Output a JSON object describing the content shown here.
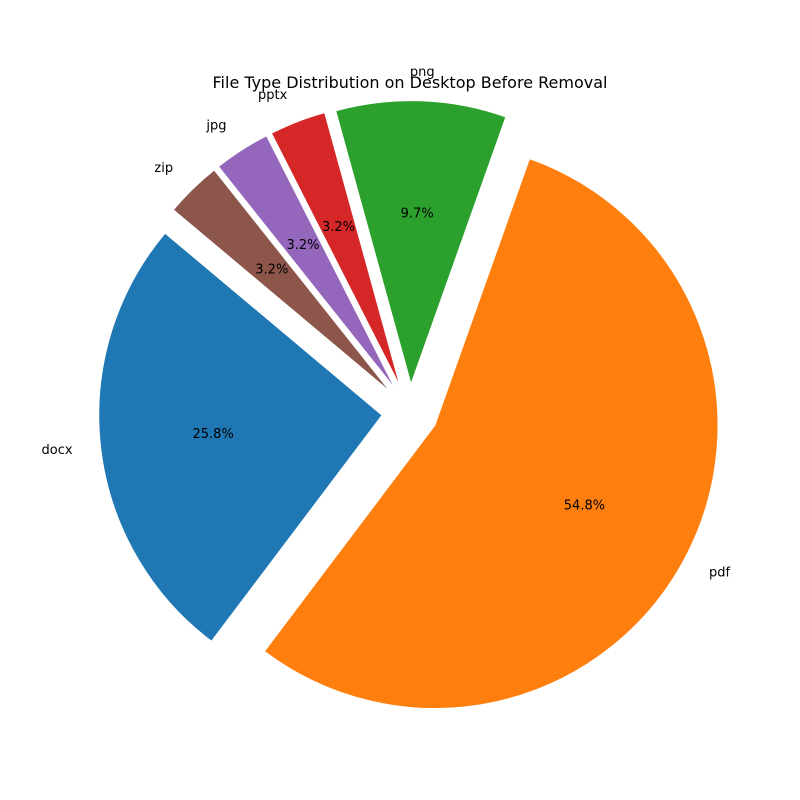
{
  "chart_data": {
    "type": "pie",
    "title": "File Type Distribution on Desktop Before Removal",
    "slices": [
      {
        "label": "docx",
        "value": 25.8,
        "pct_label": "25.8%",
        "color": "#1f77b4",
        "explode": 0.1
      },
      {
        "label": "pdf",
        "value": 54.8,
        "pct_label": "54.8%",
        "color": "#ff7f0e",
        "explode": 0.1
      },
      {
        "label": "png",
        "value": 9.7,
        "pct_label": "9.7%",
        "color": "#2ca02c",
        "explode": 0.1
      },
      {
        "label": "pptx",
        "value": 3.2,
        "pct_label": "3.2%",
        "color": "#d62728",
        "explode": 0.1
      },
      {
        "label": "jpg",
        "value": 3.2,
        "pct_label": "3.2%",
        "color": "#9467bd",
        "explode": 0.1
      },
      {
        "label": "zip",
        "value": 3.2,
        "pct_label": "3.2%",
        "color": "#8c564b",
        "explode": 0.1
      }
    ],
    "start_angle_deg": 140,
    "direction": "counterclockwise",
    "legend": "none"
  }
}
